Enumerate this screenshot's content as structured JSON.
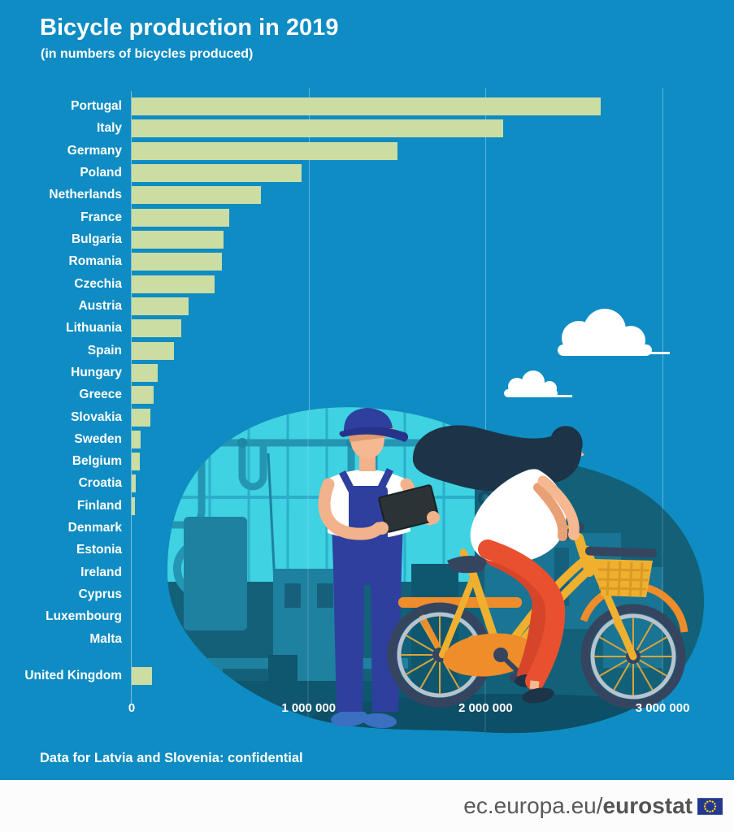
{
  "page": {
    "title": "Bicycle production in 2019",
    "subtitle": "(in numbers of bicycles produced)",
    "footnote": "Data for Latvia and Slovenia: confidential"
  },
  "chart_data": {
    "type": "bar",
    "orientation": "horizontal",
    "title": "Bicycle production in 2019",
    "subtitle": "(in numbers of bicycles produced)",
    "unit": "bicycles",
    "categories": [
      "Portugal",
      "Italy",
      "Germany",
      "Poland",
      "Netherlands",
      "France",
      "Bulgaria",
      "Romania",
      "Czechia",
      "Austria",
      "Lithuania",
      "Spain",
      "Hungary",
      "Greece",
      "Slovakia",
      "Sweden",
      "Belgium",
      "Croatia",
      "Finland",
      "Denmark",
      "Estonia",
      "Ireland",
      "Cyprus",
      "Luxembourg",
      "Malta",
      "United Kingdom"
    ],
    "values": [
      2650000,
      2100000,
      1500000,
      960000,
      730000,
      550000,
      520000,
      510000,
      470000,
      320000,
      280000,
      240000,
      145000,
      125000,
      105000,
      50000,
      45000,
      25000,
      20000,
      0,
      0,
      0,
      0,
      0,
      0,
      115000
    ],
    "xtick_labels": [
      "0",
      "1 000 000",
      "2 000 000",
      "3 000 000"
    ],
    "xtick_values": [
      0,
      1000000,
      2000000,
      3000000
    ],
    "xlim": [
      0,
      3300000
    ],
    "grid": "vertical gridlines at ticks",
    "legend": "none",
    "note": "Data for Latvia and Slovenia: confidential",
    "bar_color": "#cbdda2"
  },
  "footer": {
    "url_regular": "ec.europa.eu/",
    "url_bold": "eurostat"
  },
  "palette": {
    "background": "#0e8cc3",
    "bar_fill": "#cbdda2",
    "text": "#ffffff",
    "footer_background": "#fcfcfc",
    "footer_text": "#595959",
    "eu_flag_blue": "#24388f",
    "eu_flag_stars": "#f7d21a",
    "illustration": {
      "blob_teal": "#136179",
      "bright_cyan": "#3ed2e2",
      "mid_teal": "#2496b4",
      "dark_teal": "#0f566f",
      "bike_yellow": "#f0b02f",
      "accent_orange": "#ef8d2a",
      "pants_red": "#e8502f",
      "skin": "#f5b890",
      "overalls_navy": "#2f3f9e",
      "hair_dark": "#1d3347",
      "shoe_blue": "#3a6fc1",
      "wheel_dark": "#36455f",
      "cloud_white": "#ffffff"
    }
  }
}
